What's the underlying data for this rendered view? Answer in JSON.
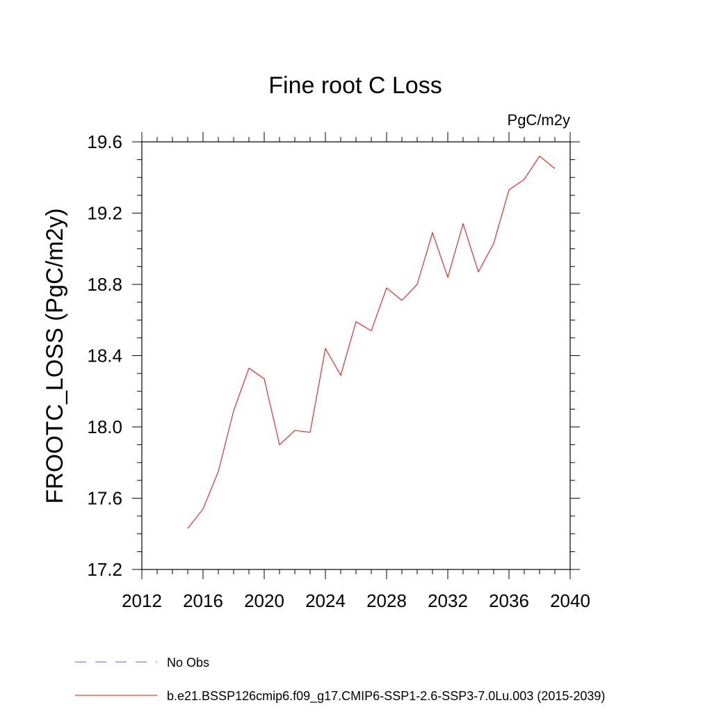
{
  "chart_data": {
    "type": "line",
    "title": "Fine root C Loss",
    "units_label": "PgC/m2y",
    "ylabel": "FROOTC_LOSS  (PgC/m2y)",
    "xlabel": "",
    "xlim": [
      2012,
      2040
    ],
    "ylim": [
      17.2,
      19.6
    ],
    "x_ticks": [
      2012,
      2016,
      2020,
      2024,
      2028,
      2032,
      2036,
      2040
    ],
    "x_tick_labels": [
      "2012",
      "2016",
      "2020",
      "2024",
      "2028",
      "2032",
      "2036",
      "2040"
    ],
    "y_ticks": [
      17.2,
      17.6,
      18.0,
      18.4,
      18.8,
      19.2,
      19.6
    ],
    "y_tick_labels": [
      "17.2",
      "17.6",
      "18.0",
      "18.4",
      "18.8",
      "19.2",
      "19.6"
    ],
    "grid": false,
    "legend_placement": "bottom-left, below plot",
    "series": [
      {
        "name": "b.e21.BSSP126cmip6.f09_g17.CMIP6-SSP1-2.6-SSP3-7.0Lu.003 (2015-2039)",
        "color": "#ff0000",
        "line_style": "solid",
        "x": [
          2015,
          2016,
          2017,
          2018,
          2019,
          2020,
          2021,
          2022,
          2023,
          2024,
          2025,
          2026,
          2027,
          2028,
          2029,
          2030,
          2031,
          2032,
          2033,
          2034,
          2035,
          2036,
          2037,
          2038,
          2039
        ],
        "y": [
          17.43,
          17.54,
          17.75,
          18.09,
          18.33,
          18.27,
          17.9,
          17.98,
          17.97,
          18.44,
          18.29,
          18.59,
          18.54,
          18.78,
          18.71,
          18.8,
          19.09,
          18.84,
          19.14,
          18.87,
          19.03,
          19.33,
          19.39,
          19.52,
          19.45
        ]
      }
    ],
    "legend": [
      {
        "label": "No Obs",
        "color": "#7f7fbf",
        "line_style": "dashed"
      },
      {
        "label": "b.e21.BSSP126cmip6.f09_g17.CMIP6-SSP1-2.6-SSP3-7.0Lu.003 (2015-2039)",
        "color": "#ff0000",
        "line_style": "solid"
      }
    ]
  }
}
